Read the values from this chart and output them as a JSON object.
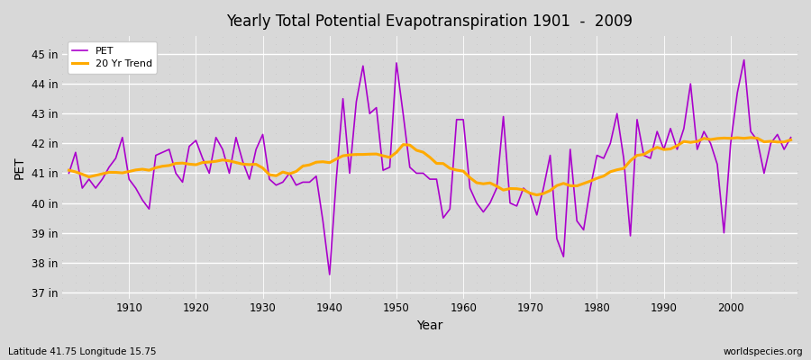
{
  "title": "Yearly Total Potential Evapotranspiration 1901  -  2009",
  "xlabel": "Year",
  "ylabel": "PET",
  "subtitle_left": "Latitude 41.75 Longitude 15.75",
  "subtitle_right": "worldspecies.org",
  "pet_color": "#aa00cc",
  "trend_color": "#ffaa00",
  "background_color": "#d8d8d8",
  "plot_bg_color": "#d8d8d8",
  "ylim": [
    36.8,
    45.6
  ],
  "yticks": [
    37,
    38,
    39,
    40,
    41,
    42,
    43,
    44,
    45
  ],
  "ytick_labels": [
    "37 in",
    "38 in",
    "39 in",
    "40 in",
    "41 in",
    "42 in",
    "43 in",
    "44 in",
    "45 in"
  ],
  "xlim": [
    1900,
    2010
  ],
  "xticks": [
    1910,
    1920,
    1930,
    1940,
    1950,
    1960,
    1970,
    1980,
    1990,
    2000
  ],
  "years": [
    1901,
    1902,
    1903,
    1904,
    1905,
    1906,
    1907,
    1908,
    1909,
    1910,
    1911,
    1912,
    1913,
    1914,
    1915,
    1916,
    1917,
    1918,
    1919,
    1920,
    1921,
    1922,
    1923,
    1924,
    1925,
    1926,
    1927,
    1928,
    1929,
    1930,
    1931,
    1932,
    1933,
    1934,
    1935,
    1936,
    1937,
    1938,
    1939,
    1940,
    1941,
    1942,
    1943,
    1944,
    1945,
    1946,
    1947,
    1948,
    1949,
    1950,
    1951,
    1952,
    1953,
    1954,
    1955,
    1956,
    1957,
    1958,
    1959,
    1960,
    1961,
    1962,
    1963,
    1964,
    1965,
    1966,
    1967,
    1968,
    1969,
    1970,
    1971,
    1972,
    1973,
    1974,
    1975,
    1976,
    1977,
    1978,
    1979,
    1980,
    1981,
    1982,
    1983,
    1984,
    1985,
    1986,
    1987,
    1988,
    1989,
    1990,
    1991,
    1992,
    1993,
    1994,
    1995,
    1996,
    1997,
    1998,
    1999,
    2000,
    2001,
    2002,
    2003,
    2004,
    2005,
    2006,
    2007,
    2008,
    2009
  ],
  "pet_values": [
    41.0,
    41.7,
    40.5,
    40.8,
    40.5,
    40.8,
    41.2,
    41.5,
    42.2,
    40.8,
    40.5,
    40.1,
    39.8,
    41.6,
    41.7,
    41.8,
    41.0,
    40.7,
    41.9,
    42.1,
    41.5,
    41.0,
    42.2,
    41.8,
    41.0,
    42.2,
    41.4,
    40.8,
    41.8,
    42.3,
    40.8,
    40.6,
    40.7,
    41.0,
    40.6,
    40.7,
    40.7,
    40.9,
    39.4,
    37.6,
    40.8,
    43.5,
    41.0,
    43.4,
    44.6,
    43.0,
    43.2,
    41.1,
    41.2,
    44.7,
    43.0,
    41.2,
    41.0,
    41.0,
    40.8,
    40.8,
    39.5,
    39.8,
    42.8,
    42.8,
    40.5,
    40.0,
    39.7,
    40.0,
    40.5,
    42.9,
    40.0,
    39.9,
    40.5,
    40.3,
    39.6,
    40.5,
    41.6,
    38.8,
    38.2,
    41.8,
    39.4,
    39.1,
    40.5,
    41.6,
    41.5,
    42.0,
    43.0,
    41.5,
    38.9,
    42.8,
    41.6,
    41.5,
    42.4,
    41.8,
    42.5,
    41.8,
    42.5,
    44.0,
    41.8,
    42.4,
    42.0,
    41.3,
    39.0,
    42.0,
    43.7,
    44.8,
    42.4,
    42.1,
    41.0,
    42.0,
    42.3,
    41.8,
    42.2
  ],
  "trend_window": 20
}
